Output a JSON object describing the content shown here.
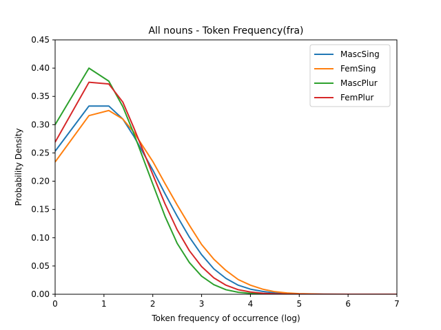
{
  "chart_data": {
    "type": "line",
    "title": "All nouns - Token Frequency(fra)",
    "xlabel": "Token frequency of occurrence (log)",
    "ylabel": "Probability Density",
    "xlim": [
      0,
      7
    ],
    "ylim": [
      0,
      0.45
    ],
    "xticks": [
      0,
      1,
      2,
      3,
      4,
      5,
      6,
      7
    ],
    "yticks": [
      0.0,
      0.05,
      0.1,
      0.15,
      0.2,
      0.25,
      0.3,
      0.35,
      0.4,
      0.45
    ],
    "ytick_labels": [
      "0.00",
      "0.05",
      "0.10",
      "0.15",
      "0.20",
      "0.25",
      "0.30",
      "0.35",
      "0.40",
      "0.45"
    ],
    "grid": false,
    "legend_position": "top-right",
    "series": [
      {
        "name": "MascSing",
        "color": "#1f77b4",
        "x": [
          0,
          0.693,
          1.099,
          1.386,
          1.609,
          2.0,
          2.25,
          2.5,
          2.75,
          3.0,
          3.25,
          3.5,
          3.75,
          4.0,
          4.25,
          4.5,
          4.75,
          5.0,
          5.5,
          6.0,
          6.5,
          7.0
        ],
        "y": [
          0.253,
          0.333,
          0.333,
          0.31,
          0.28,
          0.22,
          0.178,
          0.138,
          0.101,
          0.07,
          0.045,
          0.028,
          0.016,
          0.009,
          0.005,
          0.0025,
          0.0012,
          0.0006,
          0.0001,
          0.0,
          0.0,
          0.0
        ]
      },
      {
        "name": "FemSing",
        "color": "#ff7f0e",
        "x": [
          0,
          0.693,
          1.099,
          1.386,
          1.609,
          2.0,
          2.25,
          2.5,
          2.75,
          3.0,
          3.25,
          3.5,
          3.75,
          4.0,
          4.25,
          4.5,
          4.75,
          5.0,
          5.5,
          6.0,
          6.5,
          7.0
        ],
        "y": [
          0.234,
          0.316,
          0.325,
          0.31,
          0.287,
          0.235,
          0.196,
          0.158,
          0.122,
          0.088,
          0.062,
          0.042,
          0.026,
          0.016,
          0.009,
          0.0045,
          0.0023,
          0.0011,
          0.0002,
          0.0,
          0.0,
          0.0
        ]
      },
      {
        "name": "MascPlur",
        "color": "#2ca02c",
        "x": [
          0,
          0.693,
          1.099,
          1.386,
          1.609,
          2.0,
          2.25,
          2.5,
          2.75,
          3.0,
          3.25,
          3.5,
          3.75,
          4.0,
          4.25,
          4.5,
          4.75,
          5.0,
          5.5,
          6.0,
          6.5,
          7.0
        ],
        "y": [
          0.3,
          0.4,
          0.377,
          0.332,
          0.285,
          0.195,
          0.138,
          0.09,
          0.056,
          0.032,
          0.017,
          0.008,
          0.0035,
          0.0015,
          0.0006,
          0.0002,
          0.0001,
          0.0,
          0.0,
          0.0,
          0.0,
          0.0
        ]
      },
      {
        "name": "FemPlur",
        "color": "#d62728",
        "x": [
          0,
          0.693,
          1.099,
          1.386,
          1.609,
          2.0,
          2.25,
          2.5,
          2.75,
          3.0,
          3.25,
          3.5,
          3.75,
          4.0,
          4.25,
          4.5,
          4.75,
          5.0,
          5.5,
          6.0,
          6.5,
          7.0
        ],
        "y": [
          0.269,
          0.375,
          0.372,
          0.34,
          0.295,
          0.212,
          0.16,
          0.114,
          0.077,
          0.049,
          0.029,
          0.016,
          0.008,
          0.004,
          0.0018,
          0.0008,
          0.0003,
          0.0001,
          0.0,
          0.0,
          0.0,
          0.0
        ]
      }
    ]
  }
}
